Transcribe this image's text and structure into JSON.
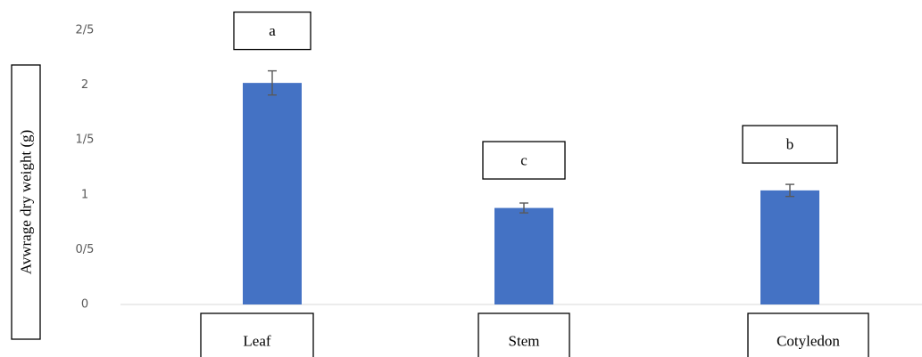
{
  "chart_data": {
    "type": "bar",
    "title": "",
    "xlabel": "",
    "ylabel": "Avwrage dry weight (g)",
    "categories": [
      "Leaf",
      "Stem",
      "Cotyledon"
    ],
    "values": [
      2.02,
      0.88,
      1.04
    ],
    "error": [
      0.11,
      0.045,
      0.055
    ],
    "significance_letters": [
      "a",
      "c",
      "b"
    ],
    "ylim": [
      0,
      2.5
    ],
    "y_ticks": [
      0,
      0.5,
      1,
      1.5,
      2,
      2.5
    ],
    "y_tick_labels": [
      "0",
      "0/5",
      "1",
      "1/5",
      "2",
      "2/5"
    ],
    "grid": false,
    "legend": "none",
    "bar_color": "#4472c4"
  }
}
